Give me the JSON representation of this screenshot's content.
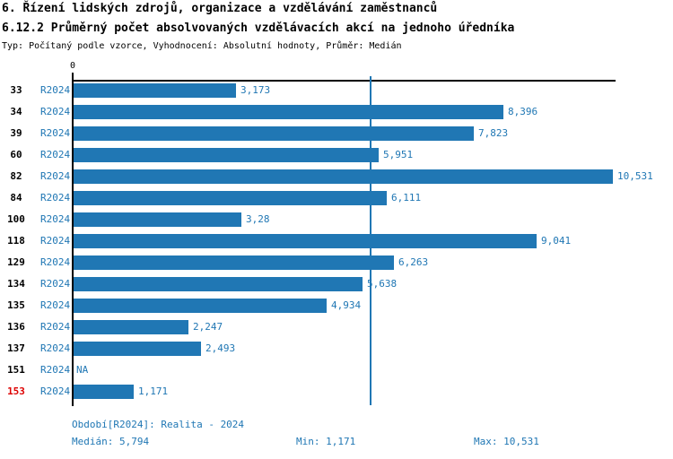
{
  "header": {
    "title_line1": "6. Řízení lidských zdrojů, organizace a vzdělávání zaměstnanců",
    "title_line2": "6.12.2 Průměrný počet absolvovaných vzdělávacích akcí na jednoho úředníka",
    "meta_line": "Typ: Počítaný podle vzorce, Vyhodnocení: Absolutní hodnoty, Průměr: Medián"
  },
  "colors": {
    "blue": "#2077b4",
    "red": "#dd0000",
    "axis_black": "#000000"
  },
  "chart_data": {
    "type": "bar",
    "orientation": "horizontal",
    "title": "6.12.2 Průměrný počet absolvovaných vzdělávacích akcí na jednoho úředníka",
    "x_zero_label": "0",
    "xlim": [
      0,
      10.531
    ],
    "series_label": "R2024",
    "categories": [
      "33",
      "34",
      "39",
      "60",
      "82",
      "84",
      "100",
      "118",
      "129",
      "134",
      "135",
      "136",
      "137",
      "151",
      "153"
    ],
    "values": [
      3.173,
      8.396,
      7.823,
      5.951,
      10.531,
      6.111,
      3.28,
      9.041,
      6.263,
      5.638,
      4.934,
      2.247,
      2.493,
      null,
      1.171
    ],
    "value_labels": [
      "3,173",
      "8,396",
      "7,823",
      "5,951",
      "10,531",
      "6,111",
      "3,28",
      "9,041",
      "6,263",
      "5,638",
      "4,934",
      "2,247",
      "2,493",
      "NA",
      "1,171"
    ],
    "highlighted_categories": [
      "153"
    ],
    "median": 5.794,
    "grid": false,
    "legend": "none"
  },
  "footer": {
    "period": "Období[R2024]: Realita - 2024",
    "median": "Medián: 5,794",
    "min": "Min: 1,171",
    "max": "Max: 10,531"
  }
}
